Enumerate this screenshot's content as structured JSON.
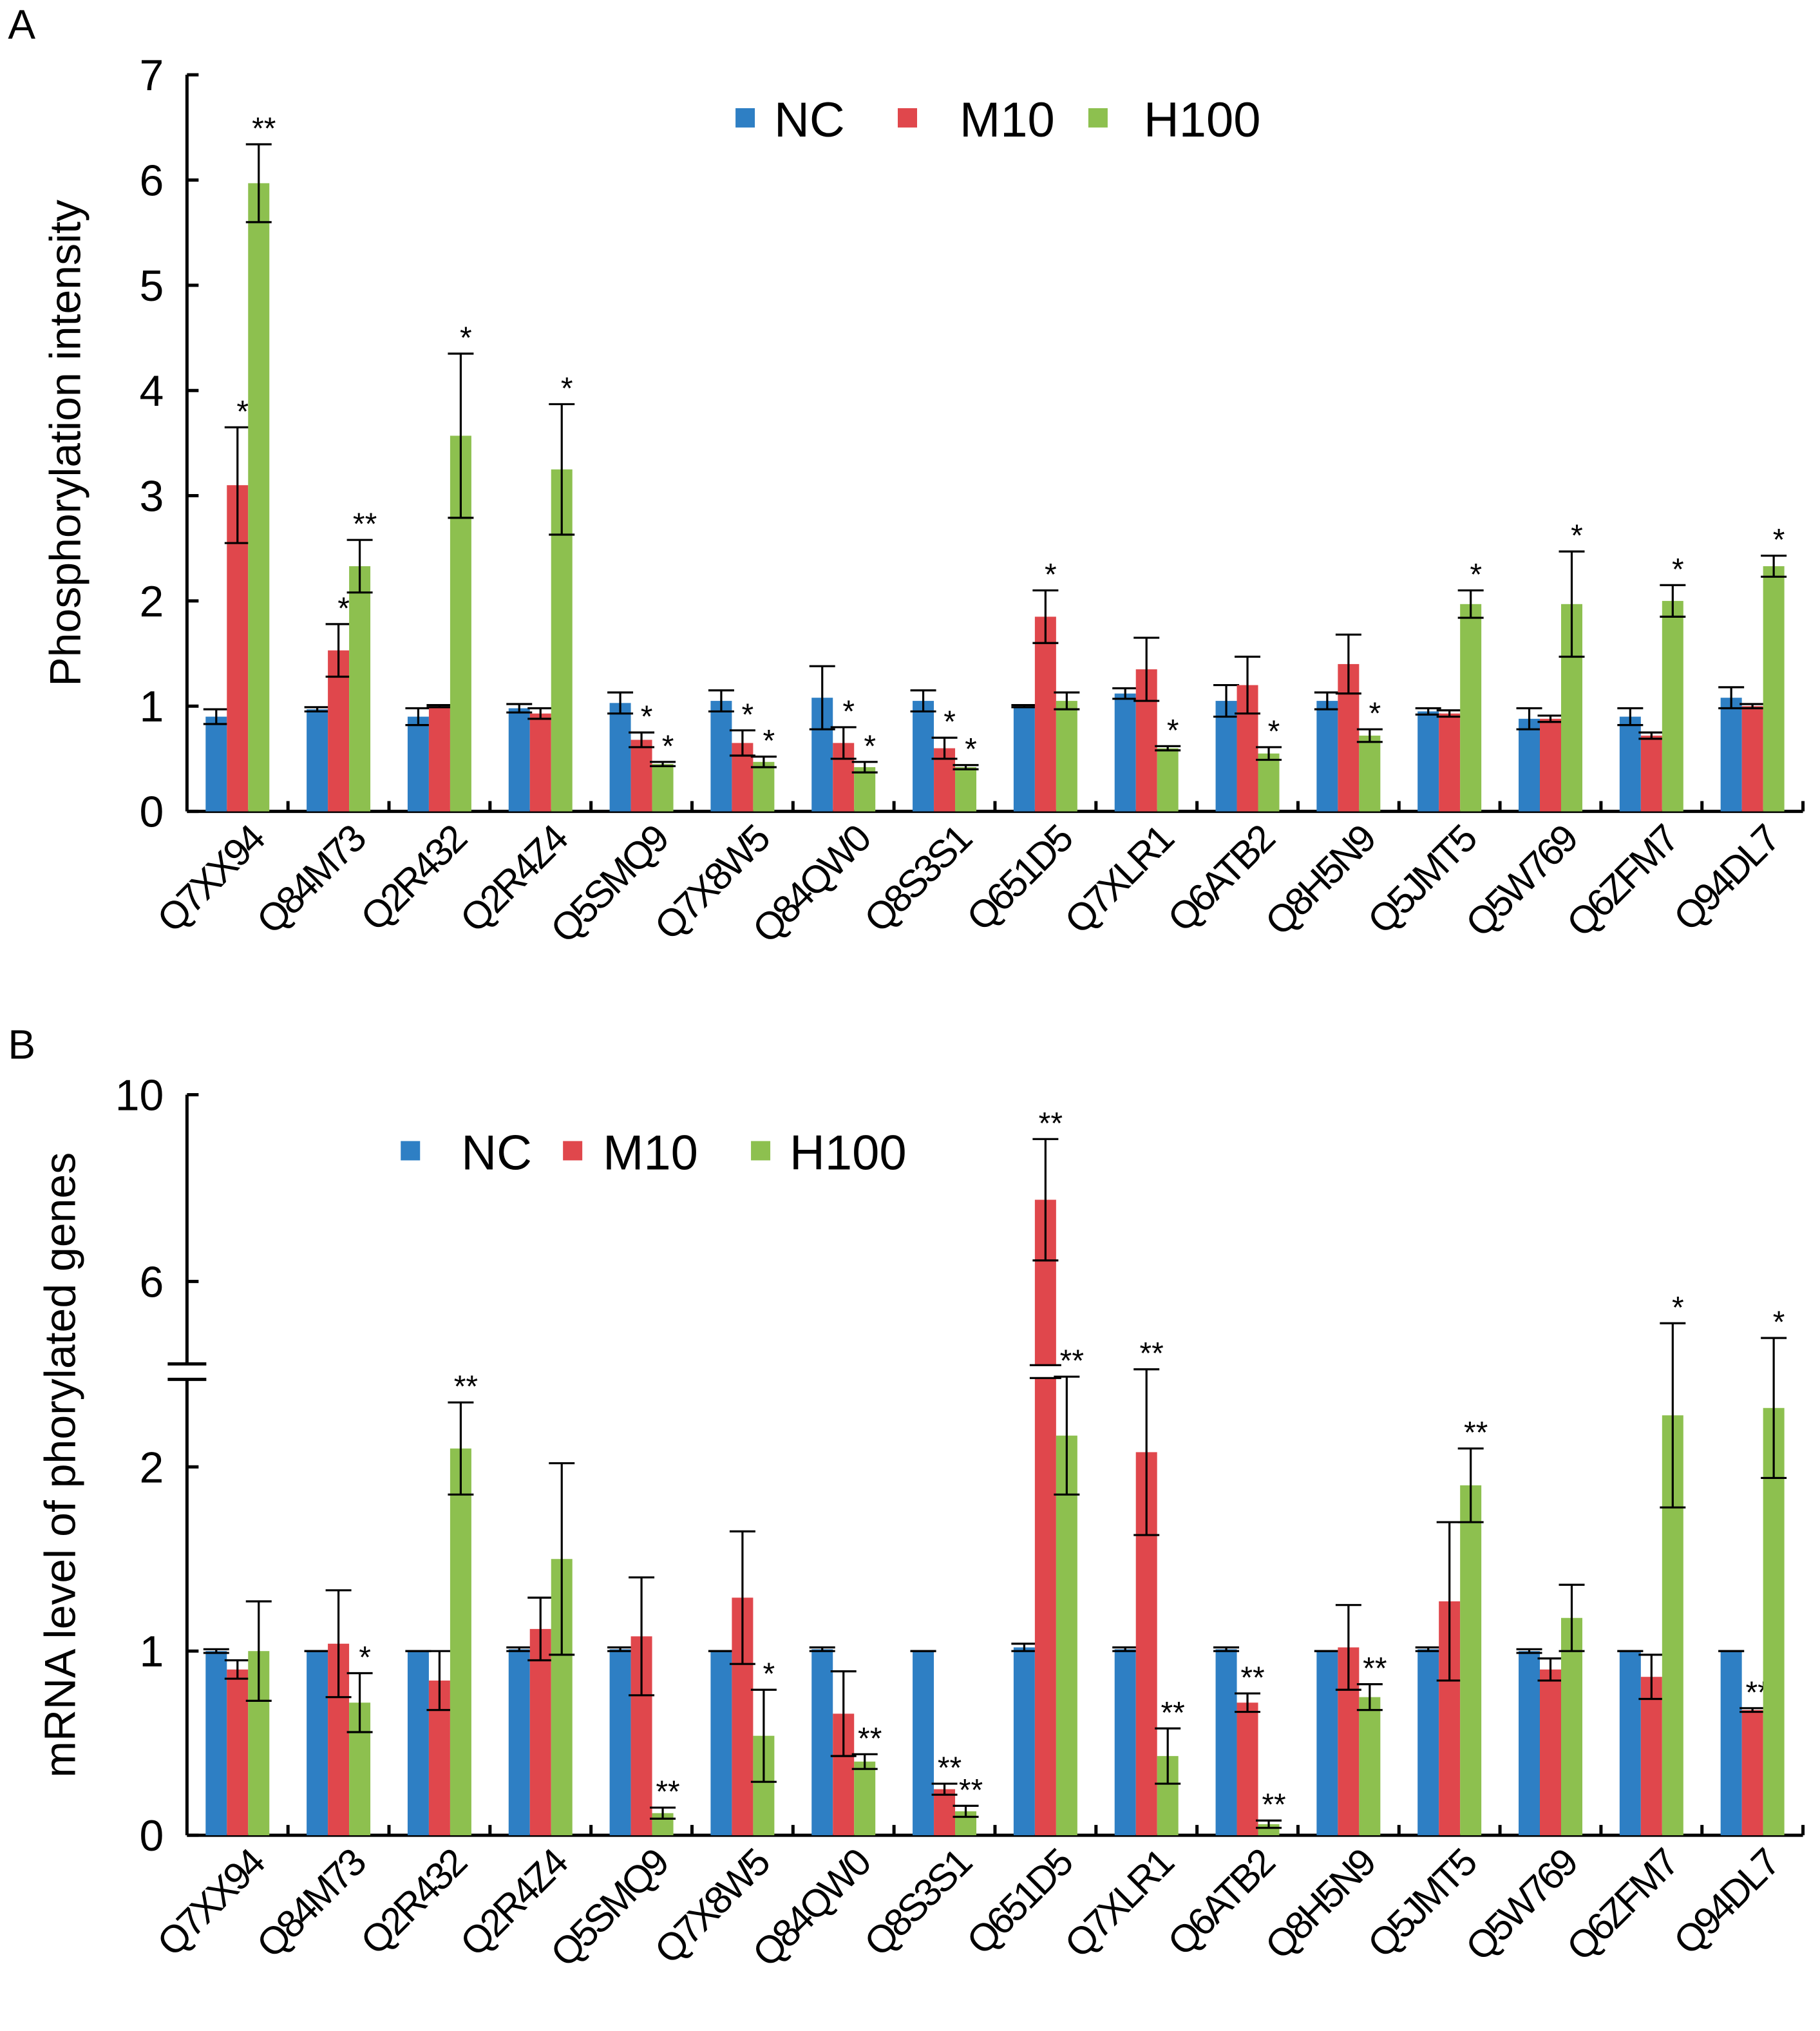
{
  "chart_data": [
    {
      "panel": "A",
      "type": "bar",
      "title": "",
      "xlabel": "",
      "ylabel": "Phosphorylation intensity",
      "ylim": [
        0,
        7
      ],
      "yticks": [
        "0",
        "1",
        "2",
        "3",
        "4",
        "5",
        "6",
        "7"
      ],
      "legend_position": "top-center",
      "categories": [
        "Q7XX94",
        "Q84M73",
        "Q2R432",
        "Q2R4Z4",
        "Q5SMQ9",
        "Q7X8W5",
        "Q84QW0",
        "Q8S3S1",
        "Q651D5",
        "Q7XLR1",
        "Q6ATB2",
        "Q8H5N9",
        "Q5JMT5",
        "Q5W769",
        "Q6ZFM7",
        "Q94DL7"
      ],
      "series": [
        {
          "name": "NC",
          "color": "#2e7fc4",
          "values": [
            0.9,
            0.97,
            0.9,
            0.98,
            1.03,
            1.05,
            1.08,
            1.05,
            1.0,
            1.12,
            1.05,
            1.05,
            0.95,
            0.88,
            0.9,
            1.08
          ],
          "errors": [
            0.07,
            0.02,
            0.08,
            0.04,
            0.1,
            0.1,
            0.3,
            0.1,
            0.01,
            0.05,
            0.15,
            0.08,
            0.03,
            0.1,
            0.08,
            0.1
          ],
          "sig": [
            "",
            "",
            "",
            "",
            "",
            "",
            "",
            "",
            "",
            "",
            "",
            "",
            "",
            "",
            "",
            ""
          ]
        },
        {
          "name": "M10",
          "color": "#e0474c",
          "values": [
            3.1,
            1.53,
            1.0,
            0.93,
            0.68,
            0.65,
            0.65,
            0.6,
            1.85,
            1.35,
            1.2,
            1.4,
            0.93,
            0.88,
            0.72,
            1.0
          ],
          "errors": [
            0.55,
            0.25,
            0.01,
            0.05,
            0.07,
            0.12,
            0.15,
            0.1,
            0.25,
            0.3,
            0.27,
            0.28,
            0.03,
            0.03,
            0.03,
            0.02
          ],
          "sig": [
            "*",
            "*",
            "",
            "",
            "*",
            "*",
            "*",
            "*",
            "*",
            "",
            "",
            "",
            "",
            "",
            "",
            ""
          ]
        },
        {
          "name": "H100",
          "color": "#8dc04f",
          "values": [
            5.97,
            2.33,
            3.57,
            3.25,
            0.45,
            0.47,
            0.42,
            0.42,
            1.05,
            0.6,
            0.55,
            0.72,
            1.97,
            1.97,
            2.0,
            2.33
          ],
          "errors": [
            0.37,
            0.25,
            0.78,
            0.62,
            0.02,
            0.05,
            0.05,
            0.02,
            0.08,
            0.02,
            0.06,
            0.06,
            0.13,
            0.5,
            0.15,
            0.1
          ],
          "sig": [
            "**",
            "**",
            "*",
            "*",
            "*",
            "*",
            "*",
            "*",
            "",
            "*",
            "*",
            "*",
            "*",
            "*",
            "*",
            "*"
          ]
        }
      ]
    },
    {
      "panel": "B",
      "type": "bar",
      "title": "",
      "xlabel": "",
      "ylabel": "mRNA level of phorylated genes",
      "ylim": [
        0,
        10
      ],
      "y_axis_break": [
        3,
        4.2
      ],
      "yticks": [
        "0",
        "1",
        "2",
        "6",
        "10"
      ],
      "legend_position": "top-left",
      "categories": [
        "Q7XX94",
        "Q84M73",
        "Q2R432",
        "Q2R4Z4",
        "Q5SMQ9",
        "Q7X8W5",
        "Q84QW0",
        "Q8S3S1",
        "Q651D5",
        "Q7XLR1",
        "Q6ATB2",
        "Q8H5N9",
        "Q5JMT5",
        "Q5W769",
        "Q6ZFM7",
        "Q94DL7"
      ],
      "series": [
        {
          "name": "NC",
          "color": "#2e7fc4",
          "values": [
            1.0,
            1.0,
            1.0,
            1.01,
            1.01,
            1.0,
            1.01,
            1.0,
            1.02,
            1.01,
            1.01,
            1.0,
            1.01,
            1.0,
            1.0,
            1.0
          ],
          "errors": [
            0.01,
            0,
            0,
            0.01,
            0.01,
            0,
            0.01,
            0,
            0.02,
            0.01,
            0.01,
            0,
            0.01,
            0.01,
            0,
            0
          ],
          "sig": [
            "",
            "",
            "",
            "",
            "",
            "",
            "",
            "",
            "",
            "",
            "",
            "",
            "",
            "",
            "",
            ""
          ]
        },
        {
          "name": "M10",
          "color": "#e0474c",
          "values": [
            0.9,
            1.04,
            0.84,
            1.12,
            1.08,
            1.29,
            0.66,
            0.25,
            7.75,
            2.08,
            0.72,
            1.02,
            1.27,
            0.9,
            0.86,
            0.68
          ],
          "errors": [
            0.05,
            0.29,
            0.16,
            0.17,
            0.32,
            0.36,
            0.23,
            0.03,
            1.3,
            0.45,
            0.05,
            0.23,
            0.43,
            0.06,
            0.12,
            0.01
          ],
          "sig": [
            "",
            "",
            "",
            "",
            "",
            "",
            "",
            "**",
            "**",
            "**",
            "**",
            "",
            "",
            "",
            "",
            "**"
          ]
        },
        {
          "name": "H100",
          "color": "#8dc04f",
          "values": [
            1.0,
            0.72,
            2.1,
            1.5,
            0.12,
            0.54,
            0.4,
            0.13,
            2.17,
            0.43,
            0.06,
            0.75,
            1.9,
            1.18,
            2.28,
            2.32
          ],
          "errors": [
            0.27,
            0.16,
            0.25,
            0.52,
            0.03,
            0.25,
            0.04,
            0.03,
            0.32,
            0.15,
            0.02,
            0.07,
            0.2,
            0.18,
            0.5,
            0.38
          ],
          "sig": [
            "",
            "*",
            "**",
            "",
            "**",
            "*",
            "**",
            "**",
            "**",
            "**",
            "**",
            "**",
            "**",
            "",
            "*",
            "*"
          ]
        }
      ]
    }
  ],
  "panel_labels": [
    "A",
    "B"
  ]
}
